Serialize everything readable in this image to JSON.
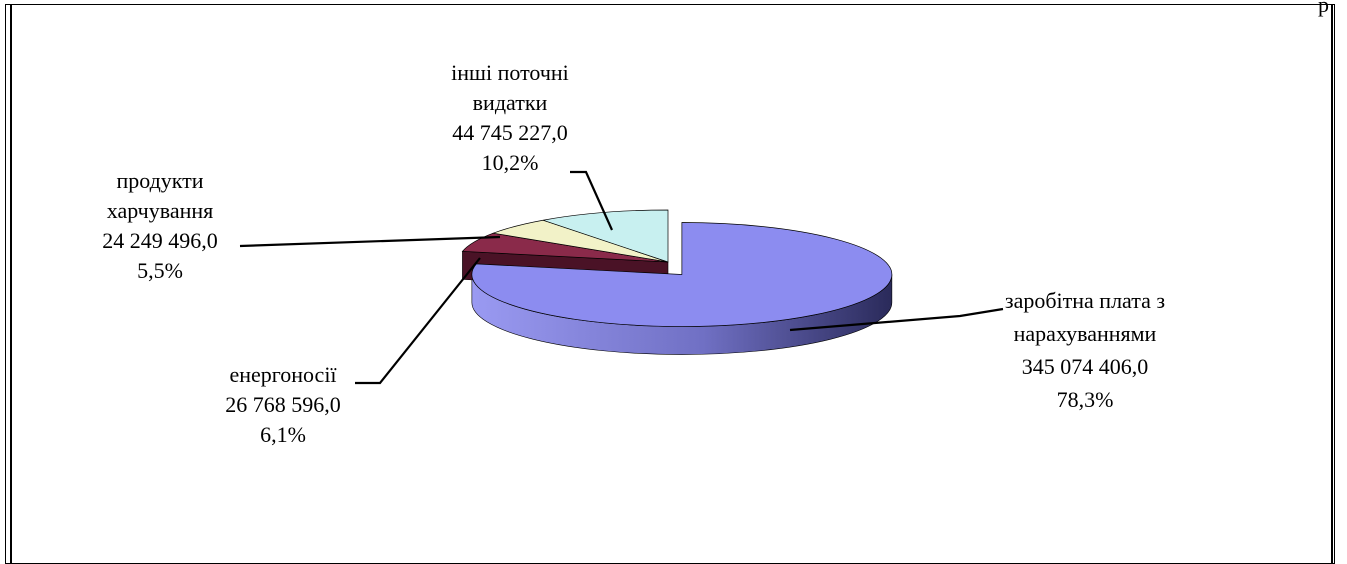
{
  "page_fragment": "р",
  "chart_data": {
    "type": "pie",
    "three_d": true,
    "title": "",
    "slices": [
      {
        "name": "заробітна плата з нарахуваннями",
        "label_lines": [
          "заробітна плата з",
          "нарахуваннями"
        ],
        "value": 345074406.0,
        "value_label": "345 074 406,0",
        "percent": 78.3,
        "percent_label": "78,3%",
        "color": "#8c8cf0",
        "side_color": "#5a5aa8",
        "exploded": true
      },
      {
        "name": "енергоносії",
        "label_lines": [
          "енергоносії"
        ],
        "value": 26768596.0,
        "value_label": "26 768 596,0",
        "percent": 6.1,
        "percent_label": "6,1%",
        "color": "#8a2a4a",
        "side_color": "#4a1226",
        "exploded": false
      },
      {
        "name": "продукти харчування",
        "label_lines": [
          "продукти",
          "харчування"
        ],
        "value": 24249496.0,
        "value_label": "24 249 496,0",
        "percent": 5.5,
        "percent_label": "5,5%",
        "color": "#f2f2c8",
        "side_color": "#b8b88e",
        "exploded": false
      },
      {
        "name": "інші поточні видатки",
        "label_lines": [
          "інші поточні",
          "видатки"
        ],
        "value": 44745227.0,
        "value_label": "44 745 227,0",
        "percent": 10.2,
        "percent_label": "10,2%",
        "color": "#c8f0f0",
        "side_color": "#8cb4b4",
        "exploded": false
      }
    ],
    "legend": "none",
    "data_labels": "outside with leader lines"
  }
}
